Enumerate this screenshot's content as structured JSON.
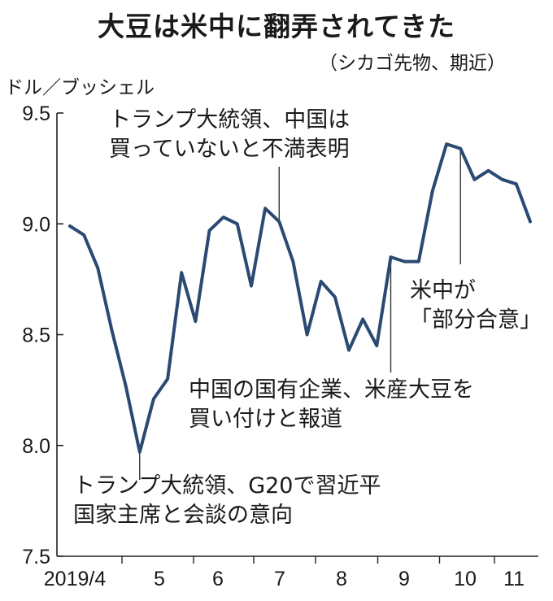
{
  "header": {
    "title": "大豆は米中に翻弄されてきた",
    "subtitle": "（シカゴ先物、期近）",
    "unit": "ドル／ブッシェル"
  },
  "annotations": {
    "a1": [
      "トランプ大統領、中国は",
      "買っていないと不満表明"
    ],
    "a2": [
      "米中が",
      "「部分合意」"
    ],
    "a3": [
      "中国の国有企業、米産大豆を",
      "買い付けと報道"
    ],
    "a4": [
      "トランプ大統領、G20で習近平",
      "国家主席と会談の意向"
    ]
  },
  "colors": {
    "line": "#2b4a72",
    "axis": "#222222",
    "leader": "#333333"
  },
  "chart_data": {
    "type": "line",
    "title": "大豆は米中に翻弄されてきた",
    "subtitle": "（シカゴ先物、期近）",
    "ylabel": "ドル／ブッシェル",
    "xlabel": "",
    "ylim": [
      7.5,
      9.5
    ],
    "yticks": [
      7.5,
      8.0,
      8.5,
      9.0,
      9.5
    ],
    "ytick_labels": [
      "7.5",
      "8.0",
      "8.5",
      "9.0",
      "9.5"
    ],
    "xticks": [
      "2019/4",
      "5",
      "6",
      "7",
      "8",
      "9",
      "10",
      "11"
    ],
    "grid": false,
    "series": [
      {
        "name": "大豆先物",
        "values": [
          8.99,
          8.95,
          8.8,
          8.52,
          8.27,
          7.97,
          8.21,
          8.3,
          8.78,
          8.56,
          8.97,
          9.03,
          9.0,
          8.72,
          9.07,
          9.01,
          8.83,
          8.5,
          8.74,
          8.67,
          8.43,
          8.57,
          8.45,
          8.85,
          8.83,
          8.83,
          9.15,
          9.36,
          9.34,
          9.2,
          9.24,
          9.2,
          9.18,
          9.01
        ]
      }
    ]
  }
}
